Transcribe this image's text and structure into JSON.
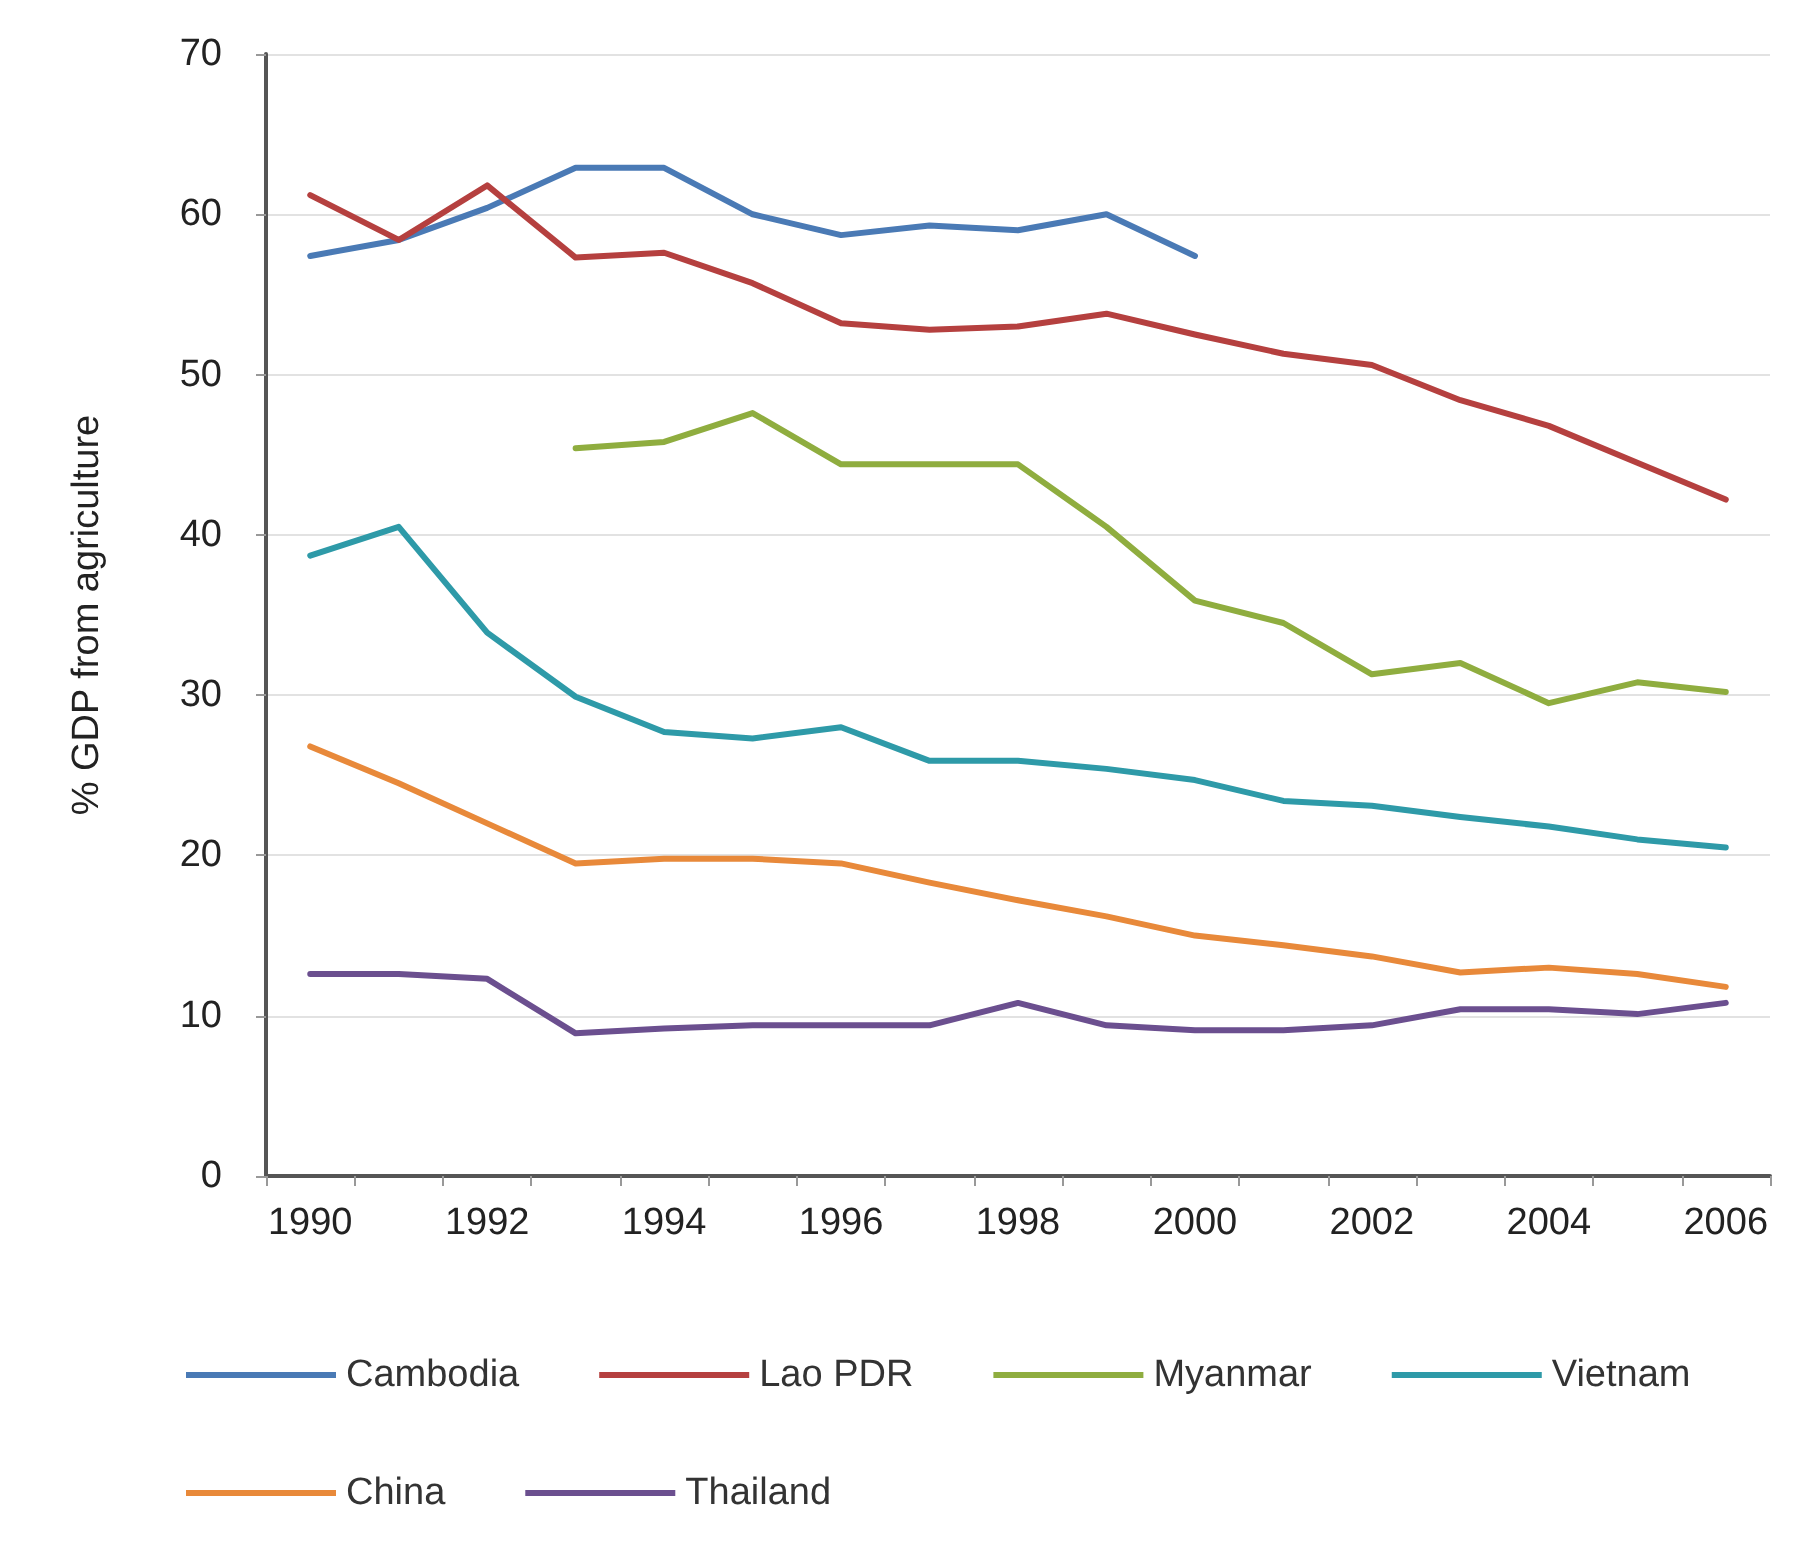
{
  "chart_data": {
    "type": "line",
    "ylabel": "% GDP from agriculture",
    "categories": [
      "1990",
      null,
      "1992",
      null,
      "1994",
      null,
      "1996",
      null,
      "1998",
      null,
      "2000",
      null,
      "2002",
      null,
      "2004",
      null,
      "2006"
    ],
    "ylim": [
      0,
      70
    ],
    "yticks": [
      0,
      10,
      20,
      30,
      40,
      50,
      60,
      70
    ],
    "grid": "y",
    "legend": "bottom",
    "marker": "none",
    "line_style": "solid",
    "series": [
      {
        "name": "Cambodia",
        "color": "#4a7ab5",
        "values": [
          57.4,
          58.4,
          60.4,
          62.9,
          62.9,
          60,
          58.7,
          59.3,
          59,
          60,
          57.4,
          null,
          null,
          null,
          null,
          null,
          null
        ]
      },
      {
        "name": "Lao PDR",
        "color": "#b5403f",
        "values": [
          61.2,
          58.4,
          61.8,
          57.3,
          57.6,
          55.7,
          53.2,
          52.8,
          53,
          53.8,
          52.5,
          51.3,
          50.6,
          48.4,
          46.8,
          44.5,
          42.2
        ]
      },
      {
        "name": "Myanmar",
        "color": "#8fad3f",
        "values": [
          null,
          null,
          null,
          45.4,
          45.8,
          47.6,
          44.4,
          44.4,
          44.4,
          40.5,
          35.9,
          34.5,
          31.3,
          32,
          29.5,
          30.8,
          30.2
        ]
      },
      {
        "name": "Vietnam",
        "color": "#2e9aa8",
        "values": [
          38.7,
          40.5,
          33.9,
          29.9,
          27.7,
          27.3,
          28,
          25.9,
          25.9,
          25.4,
          24.7,
          23.4,
          23.1,
          22.4,
          21.8,
          21,
          20.5
        ]
      },
      {
        "name": "China",
        "color": "#e8893a",
        "values": [
          26.8,
          24.5,
          22,
          19.5,
          19.8,
          19.8,
          19.5,
          18.3,
          17.2,
          16.2,
          15,
          14.4,
          13.7,
          12.7,
          13,
          12.6,
          11.8
        ]
      },
      {
        "name": "Thailand",
        "color": "#6b4f8f",
        "values": [
          12.6,
          12.6,
          12.3,
          8.9,
          9.2,
          9.4,
          9.4,
          9.4,
          10.8,
          9.4,
          9.1,
          9.1,
          9.4,
          10.4,
          10.4,
          10.1,
          10.8
        ]
      }
    ]
  }
}
